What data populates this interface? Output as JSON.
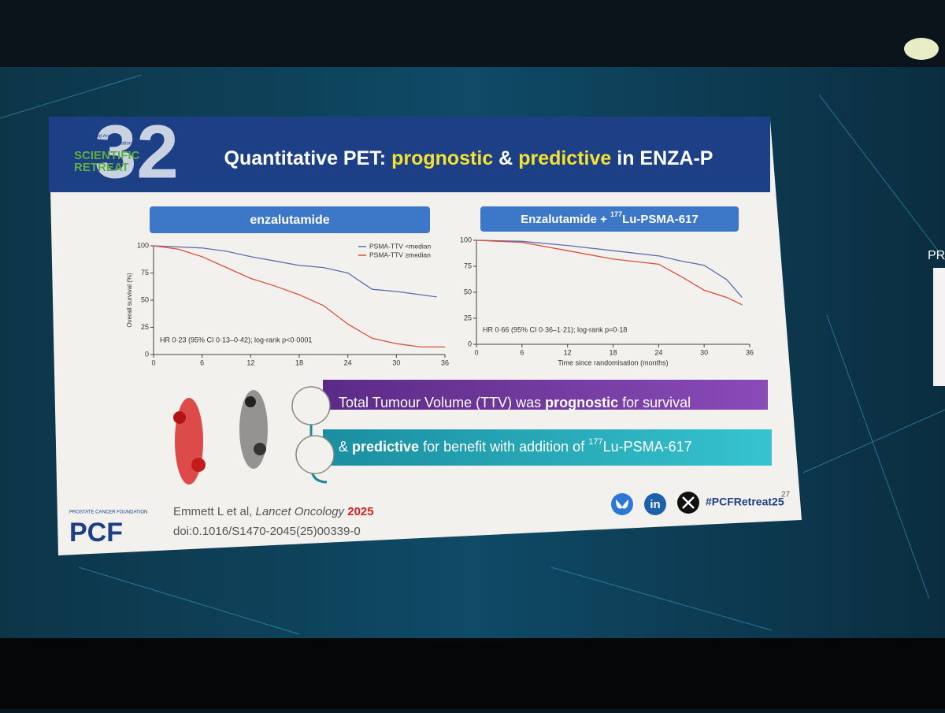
{
  "header": {
    "badge": {
      "number": "32",
      "small_text": "Thirty-Second Annual",
      "org": "Prostate Cancer Foundation",
      "line1": "SCIENTIFIC",
      "line2": "RETREAT"
    },
    "title": [
      "Quantitative PET: ",
      "prognostic",
      " & ",
      "predictive",
      " in ENZA-P"
    ]
  },
  "panels": [
    {
      "label": [
        "enzalutamide"
      ],
      "chart": {
        "type": "line",
        "y_axis_label": "Overall survival (%)",
        "annotation": "HR 0·23 (95% CI 0·13–0·42); log-rank p<0·0001",
        "xlim": [
          0,
          36
        ],
        "ylim": [
          0,
          100
        ],
        "xticks": [
          0,
          6,
          12,
          18,
          24,
          30,
          36
        ],
        "yticks": [
          0,
          25,
          50,
          75,
          100
        ],
        "series": [
          {
            "name": "PSMA-TTV <median",
            "color": "#5a6fb0",
            "x": [
              0,
              6,
              9,
              12,
              15,
              18,
              21,
              24,
              27,
              30,
              33,
              35
            ],
            "values": [
              100,
              98,
              95,
              90,
              86,
              82,
              80,
              75,
              60,
              58,
              55,
              53
            ]
          },
          {
            "name": "PSMA-TTV ≥median",
            "color": "#d9503a",
            "x": [
              0,
              3,
              6,
              9,
              12,
              15,
              18,
              21,
              24,
              27,
              30,
              33,
              36
            ],
            "values": [
              100,
              97,
              90,
              80,
              70,
              63,
              55,
              45,
              28,
              15,
              10,
              7,
              7
            ]
          }
        ]
      }
    },
    {
      "label": [
        "Enzalutamide + ",
        "177",
        "Lu-PSMA-617"
      ],
      "chart": {
        "type": "line",
        "x_axis_label": "Time since randomisation (months)",
        "annotation": "HR 0·66 (95% CI 0·36–1·21); log-rank p=0·18",
        "xlim": [
          0,
          36
        ],
        "ylim": [
          0,
          100
        ],
        "xticks": [
          0,
          6,
          12,
          18,
          24,
          30,
          36
        ],
        "yticks": [
          0,
          25,
          50,
          75,
          100
        ],
        "series": [
          {
            "name": "PSMA-TTV <median",
            "color": "#5a6fb0",
            "x": [
              0,
              6,
              12,
              18,
              24,
              27,
              30,
              33,
              35
            ],
            "values": [
              100,
              99,
              95,
              90,
              85,
              80,
              76,
              62,
              45
            ]
          },
          {
            "name": "PSMA-TTV ≥median",
            "color": "#d9503a",
            "x": [
              0,
              6,
              12,
              18,
              24,
              27,
              30,
              33,
              35
            ],
            "values": [
              100,
              98,
              90,
              82,
              77,
              65,
              52,
              45,
              38
            ]
          }
        ]
      }
    }
  ],
  "bullets": [
    [
      "Total Tumour Volume (TTV) was ",
      "prognostic",
      " for survival"
    ],
    [
      "& ",
      "predictive",
      " for benefit with addition of ",
      "177",
      "Lu-PSMA-617"
    ]
  ],
  "footer": {
    "logo": "PCF",
    "logo_org": "PROSTATE CANCER FOUNDATION",
    "citation": [
      "Emmett L et al, ",
      "Lancet Oncology",
      " 2025"
    ],
    "doi": "doi:0.1016/S1470-2045(25)00339-0",
    "social_in": "in",
    "hashtag": "#PCFRetreat25",
    "page_number": "27"
  },
  "side_screen_text": "PR"
}
